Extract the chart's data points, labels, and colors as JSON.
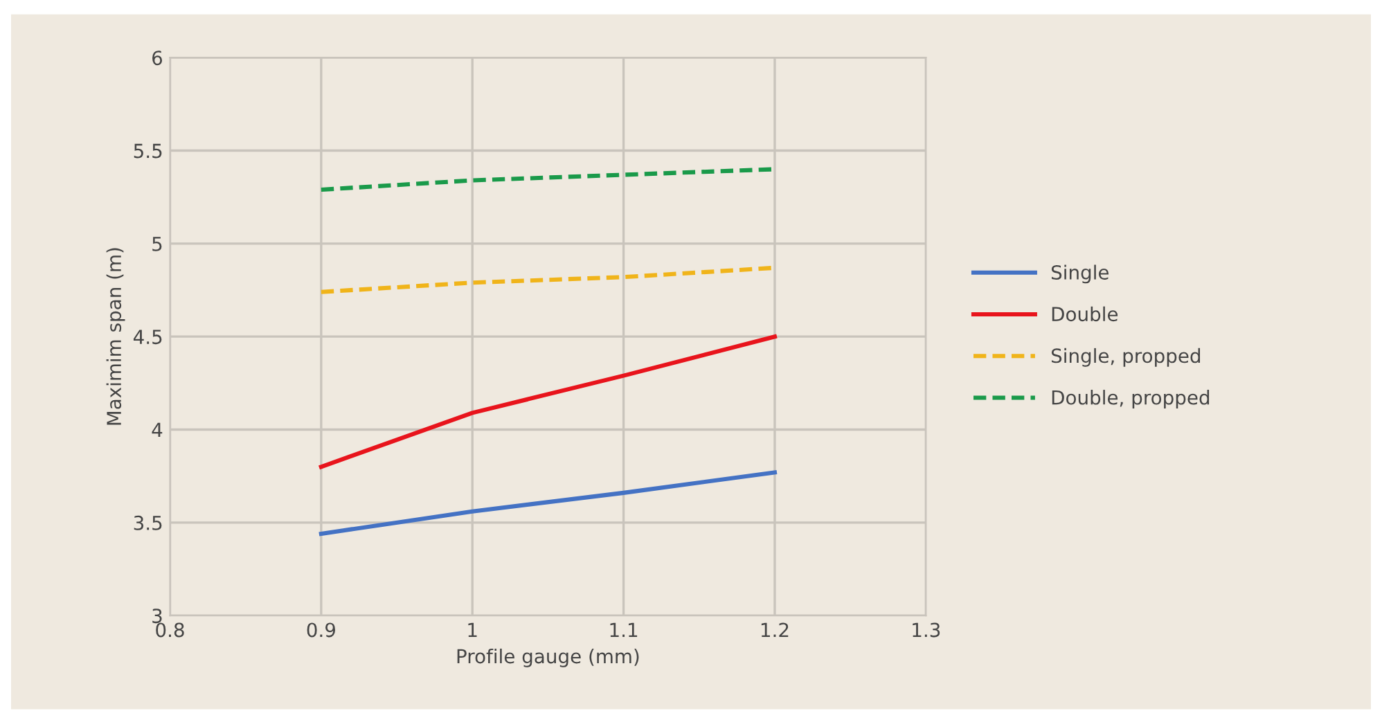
{
  "chart_data": {
    "type": "line",
    "xlabel": "Profile gauge (mm)",
    "ylabel": "Maximim span (m)",
    "x": [
      0.9,
      1.0,
      1.1,
      1.2
    ],
    "series": [
      {
        "name": "Single",
        "color": "#4472c4",
        "values": [
          3.44,
          3.56,
          3.66,
          3.77
        ],
        "line_style": "solid"
      },
      {
        "name": "Double",
        "color": "#e8141c",
        "values": [
          3.8,
          4.09,
          4.29,
          4.5
        ],
        "line_style": "solid"
      },
      {
        "name": "Single, propped",
        "color": "#f0b41a",
        "values": [
          4.74,
          4.79,
          4.82,
          4.87
        ],
        "line_style": "dashed"
      },
      {
        "name": "Double, propped",
        "color": "#1a9a4a",
        "values": [
          5.29,
          5.34,
          5.37,
          5.4
        ],
        "line_style": "dashed"
      }
    ],
    "xlim": [
      0.8,
      1.3
    ],
    "xticks": [
      0.8,
      0.9,
      1,
      1.1,
      1.2,
      1.3
    ],
    "ylim": [
      3,
      6
    ],
    "yticks": [
      3,
      3.5,
      4,
      4.5,
      5,
      5.5,
      6
    ],
    "grid": true,
    "legend": "right",
    "marker": "none"
  }
}
